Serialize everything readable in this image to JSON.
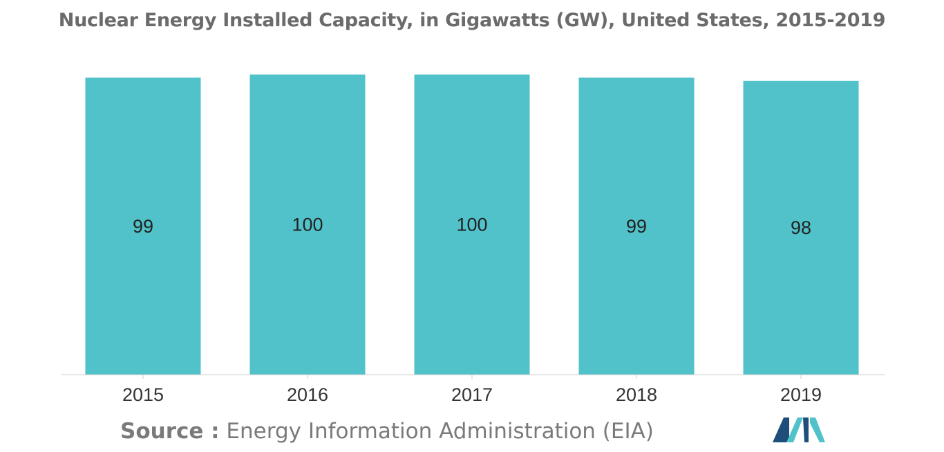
{
  "chart_data": {
    "type": "bar",
    "title": "Nuclear Energy Installed Capacity, in Gigawatts (GW), United States, 2015-2019",
    "categories": [
      "2015",
      "2016",
      "2017",
      "2018",
      "2019"
    ],
    "values": [
      99,
      100,
      100,
      99,
      98
    ],
    "data_labels": [
      "99",
      "100",
      "100",
      "99",
      "98"
    ],
    "xlabel": "",
    "ylabel": "",
    "ylim": [
      0,
      100
    ],
    "grid": false,
    "legend": "none",
    "bar_color": "#51c2c9"
  },
  "source": {
    "prefix": "Source :",
    "text": " Energy Information Administration (EIA)"
  },
  "colors": {
    "title": "#6b6b6b",
    "axis": "#d0d0d0",
    "logo_dark": "#1e4e79",
    "logo_light": "#51c2c9"
  }
}
